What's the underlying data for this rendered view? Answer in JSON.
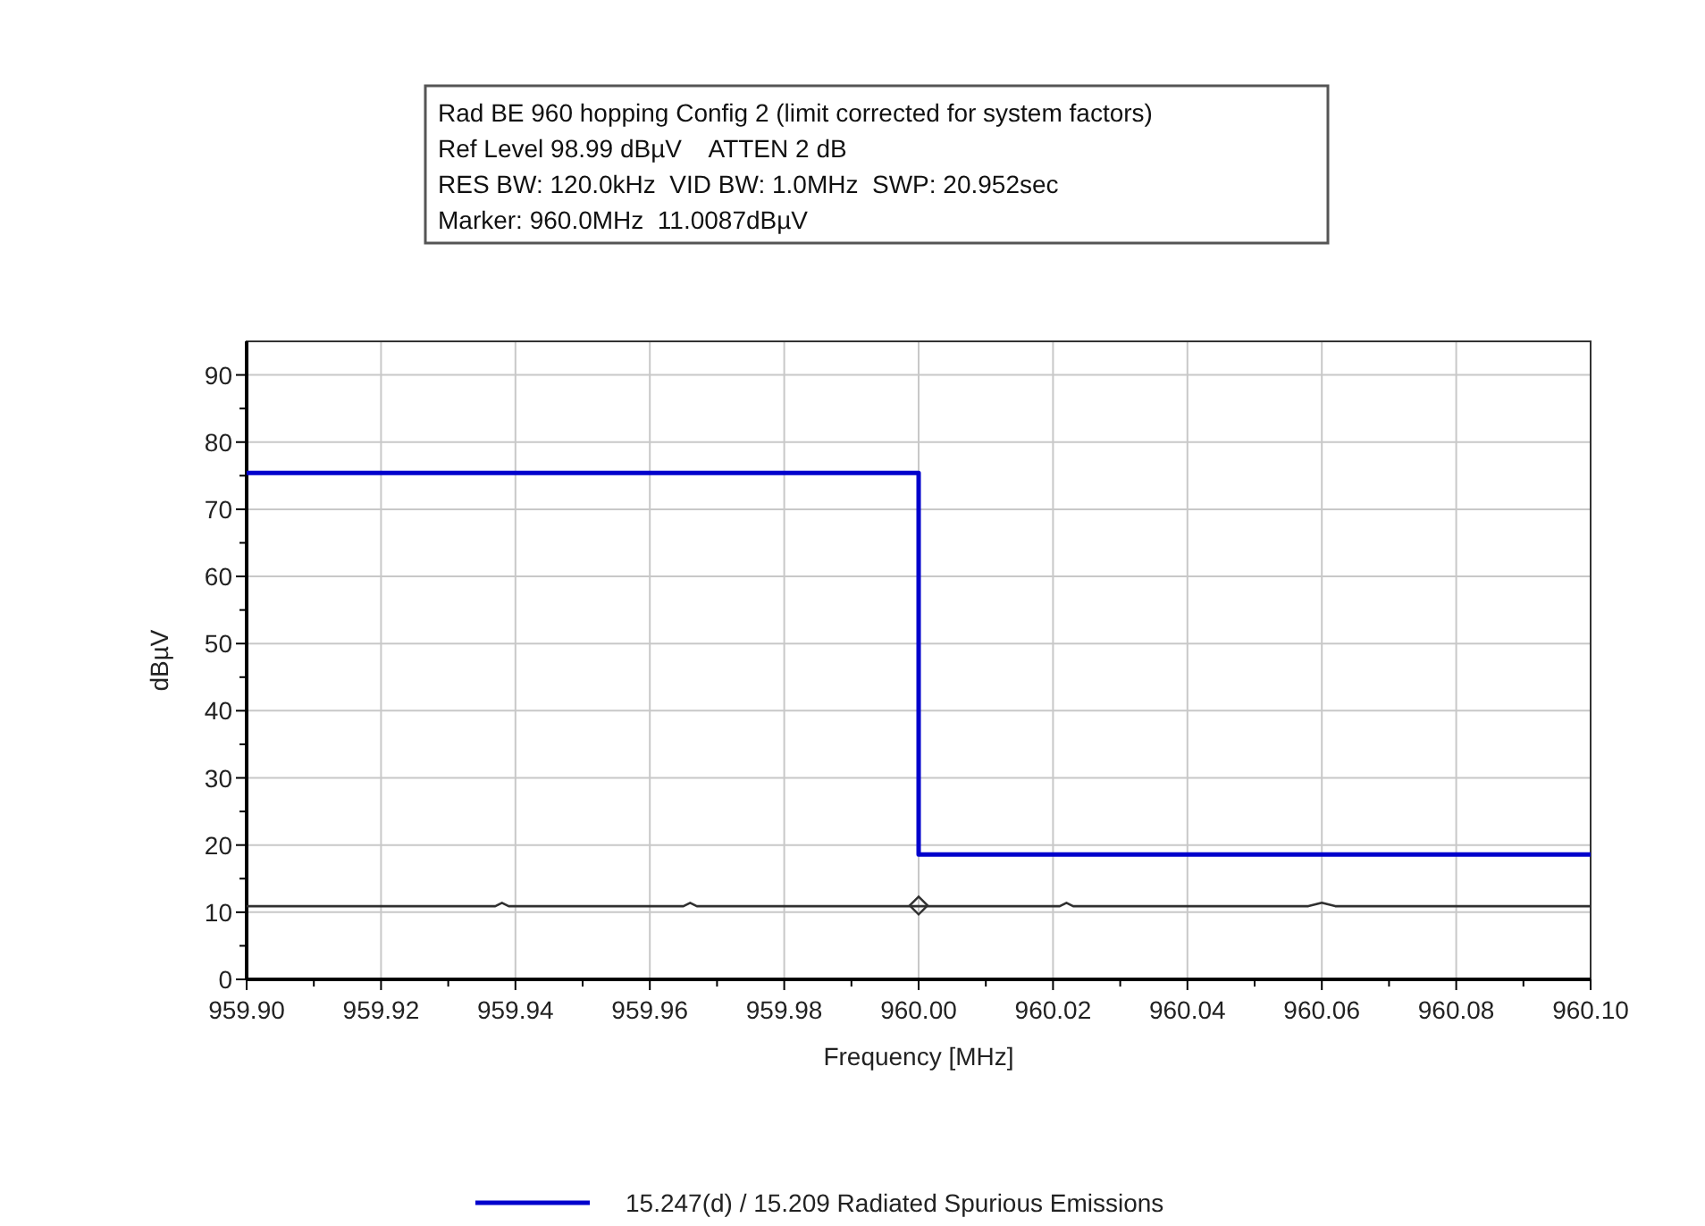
{
  "chart_data": {
    "type": "line",
    "title": "Rad BE 960 hopping Config 2 (limit corrected for system factors)",
    "annotations": [
      "Ref Level 98.99 dBµV    ATTEN 2 dB",
      "RES BW: 120.0kHz  VID BW: 1.0MHz  SWP: 20.952sec",
      "Marker: 960.0MHz  11.0087dBµV"
    ],
    "xlabel": "Frequency [MHz]",
    "ylabel": "dBµV",
    "xlim": [
      959.9,
      960.1
    ],
    "ylim": [
      0,
      95
    ],
    "xticks": [
      {
        "value": 959.9,
        "label": "959.90"
      },
      {
        "value": 959.91,
        "label": null
      },
      {
        "value": 959.92,
        "label": "959.92"
      },
      {
        "value": 959.93,
        "label": null
      },
      {
        "value": 959.94,
        "label": "959.94"
      },
      {
        "value": 959.95,
        "label": null
      },
      {
        "value": 959.96,
        "label": "959.96"
      },
      {
        "value": 959.97,
        "label": null
      },
      {
        "value": 959.98,
        "label": "959.98"
      },
      {
        "value": 959.99,
        "label": null
      },
      {
        "value": 960.0,
        "label": "960.00"
      },
      {
        "value": 960.01,
        "label": null
      },
      {
        "value": 960.02,
        "label": "960.02"
      },
      {
        "value": 960.03,
        "label": null
      },
      {
        "value": 960.04,
        "label": "960.04"
      },
      {
        "value": 960.05,
        "label": null
      },
      {
        "value": 960.06,
        "label": "960.06"
      },
      {
        "value": 960.07,
        "label": null
      },
      {
        "value": 960.08,
        "label": "960.08"
      },
      {
        "value": 960.09,
        "label": null
      },
      {
        "value": 960.1,
        "label": "960.10"
      }
    ],
    "yticks": [
      0,
      {
        "value": 5,
        "label": null
      },
      10,
      {
        "value": 15,
        "label": null
      },
      20,
      {
        "value": 25,
        "label": null
      },
      30,
      {
        "value": 35,
        "label": null
      },
      40,
      {
        "value": 45,
        "label": null
      },
      50,
      {
        "value": 55,
        "label": null
      },
      60,
      {
        "value": 65,
        "label": null
      },
      70,
      {
        "value": 75,
        "label": null
      },
      80,
      {
        "value": 85,
        "label": null
      },
      90
    ],
    "grid": true,
    "legend": "bottom",
    "series": [
      {
        "name": "15.247(d) / 15.209 Radiated Spurious Emissions",
        "type": "step",
        "color": "#0000cc",
        "x": [
          959.9,
          960.0,
          960.1
        ],
        "values": [
          75.4,
          18.6,
          18.6
        ]
      },
      {
        "color": "#303030",
        "x": [
          959.9,
          959.937,
          959.938,
          959.939,
          959.965,
          959.966,
          959.967,
          960.021,
          960.022,
          960.023,
          960.058,
          960.06,
          960.062,
          960.1
        ],
        "values": [
          10.9,
          10.9,
          11.4,
          10.9,
          10.9,
          11.4,
          10.9,
          10.9,
          11.4,
          10.9,
          10.9,
          11.4,
          10.9,
          10.9
        ]
      },
      {
        "type": "scatter",
        "marker": "diamond",
        "color": "#303030",
        "x": [
          960.0
        ],
        "values": [
          11
        ]
      }
    ]
  }
}
